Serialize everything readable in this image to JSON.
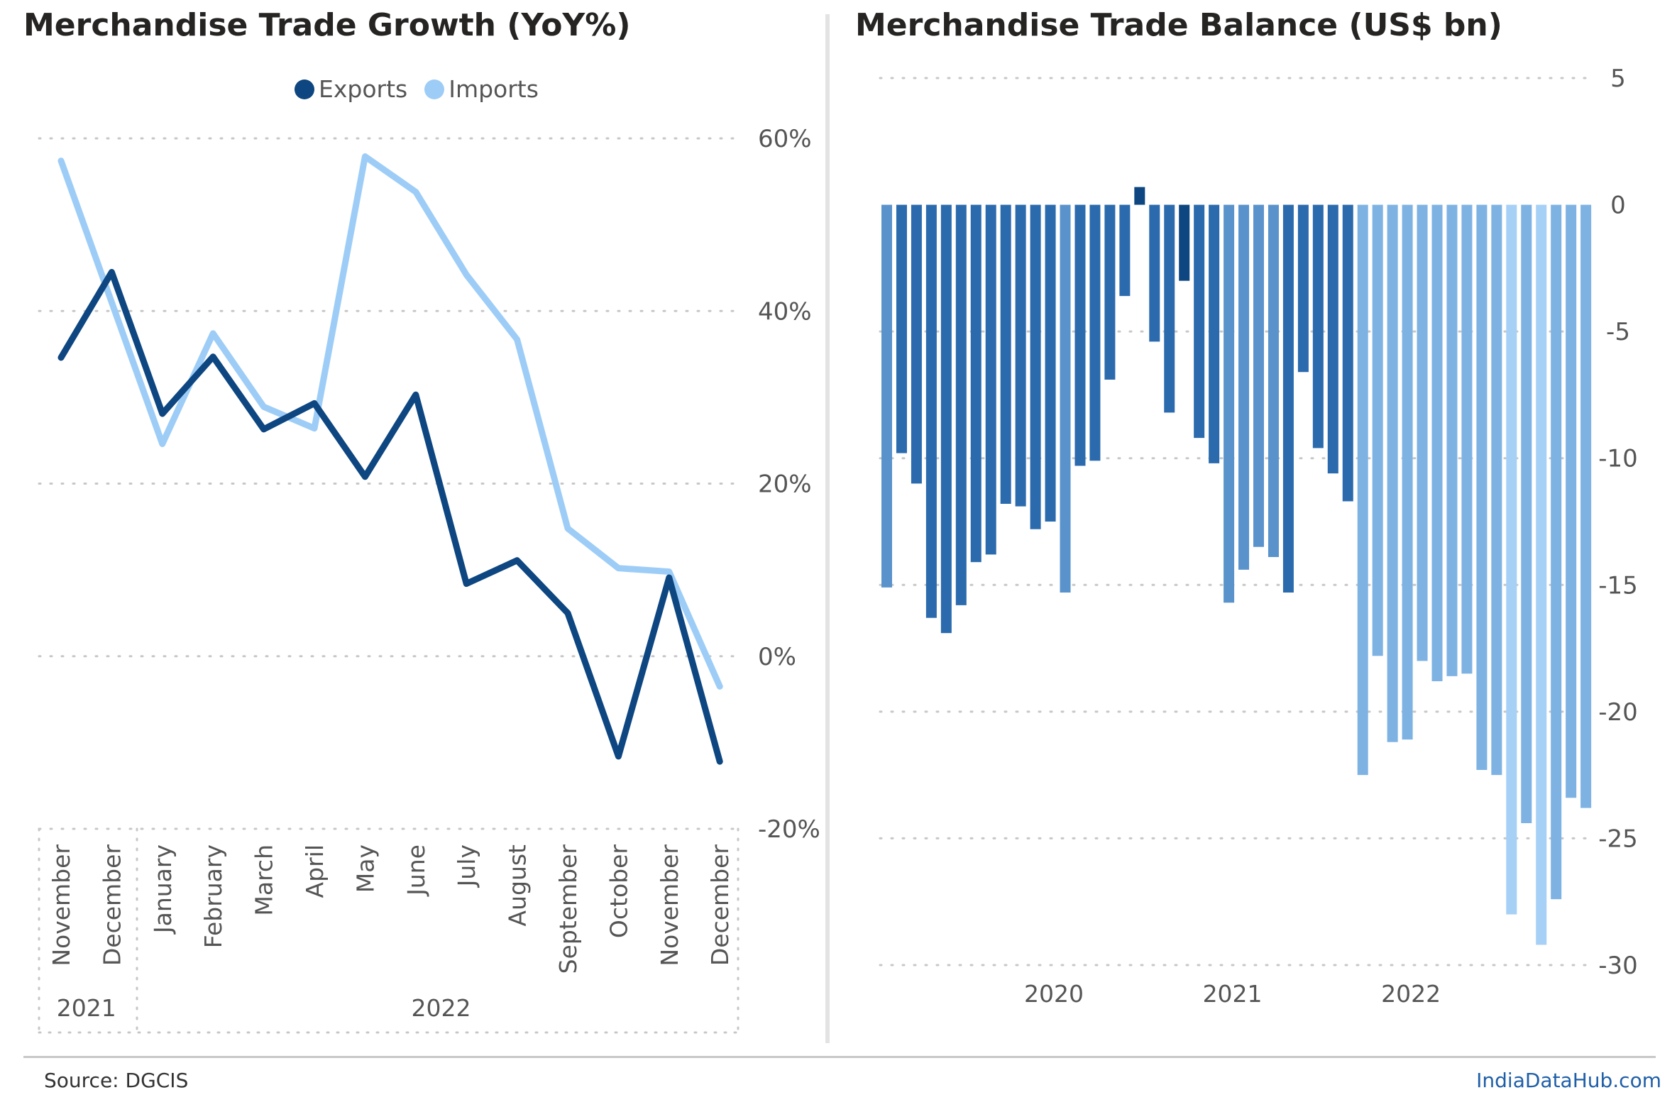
{
  "footer": {
    "source": "Source: DGCIS",
    "brand": "IndiaDataHub.com"
  },
  "colors": {
    "exports": "#0d4680",
    "imports": "#9dcdf7",
    "bar_dark": "#2b6aad",
    "bar_mid": "#5a93cc",
    "bar_light": "#7eb2e3",
    "bar_lightest": "#a6d0f5"
  },
  "chart_data": [
    {
      "type": "line",
      "title": "Merchandise Trade Growth (YoY%)",
      "x": [
        "November",
        "December",
        "January",
        "February",
        "March",
        "April",
        "May",
        "June",
        "July",
        "August",
        "September",
        "October",
        "November",
        "December"
      ],
      "year_groups": [
        {
          "label": "2021",
          "count": 2
        },
        {
          "label": "2022",
          "count": 12
        }
      ],
      "series": [
        {
          "name": "Exports",
          "values": [
            34.6,
            44.5,
            28.1,
            34.7,
            26.3,
            29.3,
            20.8,
            30.3,
            8.4,
            11.1,
            5.0,
            -11.6,
            9.1,
            -12.2
          ]
        },
        {
          "name": "Imports",
          "values": [
            57.4,
            41.0,
            24.6,
            37.4,
            28.9,
            26.4,
            57.9,
            53.8,
            44.2,
            36.7,
            14.8,
            10.2,
            9.8,
            -3.5
          ]
        }
      ],
      "y_ticks": [
        "60%",
        "40%",
        "20%",
        "0%",
        "-20%"
      ],
      "ylim": [
        -20,
        60
      ],
      "legend": "top-center",
      "grid": true
    },
    {
      "type": "bar",
      "title": "Merchandise Trade Balance (US$ bn)",
      "x_ticks": [
        "2020",
        "2021",
        "2022"
      ],
      "y_ticks": [
        "5",
        "0",
        "-5",
        "-10",
        "-15",
        "-20",
        "-25",
        "-30"
      ],
      "ylim": [
        -30,
        5
      ],
      "grid": true,
      "values": [
        -15.1,
        -9.8,
        -11.0,
        -16.3,
        -16.9,
        -15.8,
        -14.1,
        -13.8,
        -11.8,
        -11.9,
        -12.8,
        -12.5,
        -15.3,
        -10.3,
        -10.1,
        -6.9,
        -3.6,
        0.7,
        -5.4,
        -8.2,
        -3.0,
        -9.2,
        -10.2,
        -15.7,
        -14.4,
        -13.5,
        -13.9,
        -15.3,
        -6.6,
        -9.6,
        -10.6,
        -11.7,
        -22.5,
        -17.8,
        -21.2,
        -21.1,
        -18.0,
        -18.8,
        -18.6,
        -18.5,
        -22.3,
        -22.5,
        -28.0,
        -24.4,
        -29.2,
        -27.4,
        -23.4,
        -23.8
      ],
      "bar_shades": [
        "bar_mid",
        "bar_dark",
        "bar_dark",
        "bar_dark",
        "bar_dark",
        "bar_dark",
        "bar_dark",
        "bar_dark",
        "bar_dark",
        "bar_dark",
        "bar_dark",
        "bar_dark",
        "bar_mid",
        "bar_dark",
        "bar_dark",
        "bar_dark",
        "bar_dark",
        "exports",
        "bar_dark",
        "bar_dark",
        "exports",
        "bar_dark",
        "bar_dark",
        "bar_mid",
        "bar_mid",
        "bar_mid",
        "bar_mid",
        "bar_dark",
        "bar_dark",
        "bar_dark",
        "bar_dark",
        "bar_dark",
        "bar_light",
        "bar_light",
        "bar_light",
        "bar_light",
        "bar_light",
        "bar_light",
        "bar_light",
        "bar_light",
        "bar_light",
        "bar_light",
        "bar_lightest",
        "bar_light",
        "bar_lightest",
        "bar_light",
        "bar_light",
        "bar_light"
      ]
    }
  ]
}
